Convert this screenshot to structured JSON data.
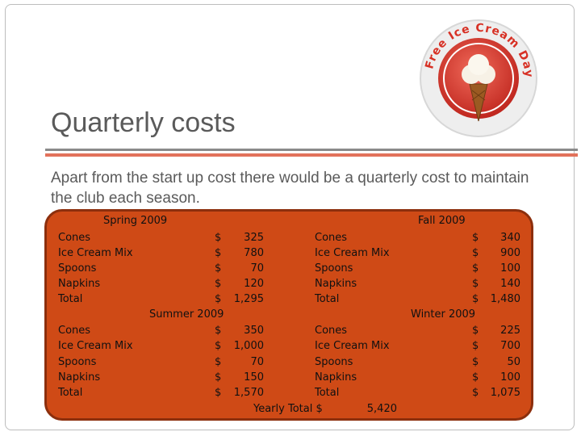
{
  "slide": {
    "title": "Quarterly costs",
    "body": "Apart from the start up cost there would be a quarterly cost to maintain the club each season."
  },
  "badge": {
    "text": "Free Ice Cream Day"
  },
  "colors": {
    "panel": "#cf4a16",
    "accent": "#e2725b",
    "title_text": "#5a5a5a"
  },
  "icons": [
    "ice-cream-cone-icon"
  ],
  "table": {
    "currency": "$",
    "spring": {
      "header": "Spring 2009",
      "rows": [
        {
          "item": "Cones",
          "amount": "325"
        },
        {
          "item": "Ice Cream Mix",
          "amount": "780"
        },
        {
          "item": "Spoons",
          "amount": "70"
        },
        {
          "item": "Napkins",
          "amount": "120"
        },
        {
          "item": "Total",
          "amount": "1,295"
        }
      ]
    },
    "summer": {
      "header": "Summer 2009",
      "rows": [
        {
          "item": "Cones",
          "amount": "350"
        },
        {
          "item": "Ice Cream Mix",
          "amount": "1,000"
        },
        {
          "item": "Spoons",
          "amount": "70"
        },
        {
          "item": "Napkins",
          "amount": "150"
        },
        {
          "item": "Total",
          "amount": "1,570"
        }
      ]
    },
    "fall": {
      "header": "Fall 2009",
      "rows": [
        {
          "item": "Cones",
          "amount": "340"
        },
        {
          "item": "Ice Cream Mix",
          "amount": "900"
        },
        {
          "item": "Spoons",
          "amount": "100"
        },
        {
          "item": "Napkins",
          "amount": "140"
        },
        {
          "item": "Total",
          "amount": "1,480"
        }
      ]
    },
    "winter": {
      "header": "Winter 2009",
      "rows": [
        {
          "item": "Cones",
          "amount": "225"
        },
        {
          "item": "Ice Cream Mix",
          "amount": "700"
        },
        {
          "item": "Spoons",
          "amount": "50"
        },
        {
          "item": "Napkins",
          "amount": "100"
        },
        {
          "item": "Total",
          "amount": "1,075"
        }
      ]
    },
    "yearly": {
      "label": "Yearly Total $",
      "value": "5,420"
    }
  }
}
